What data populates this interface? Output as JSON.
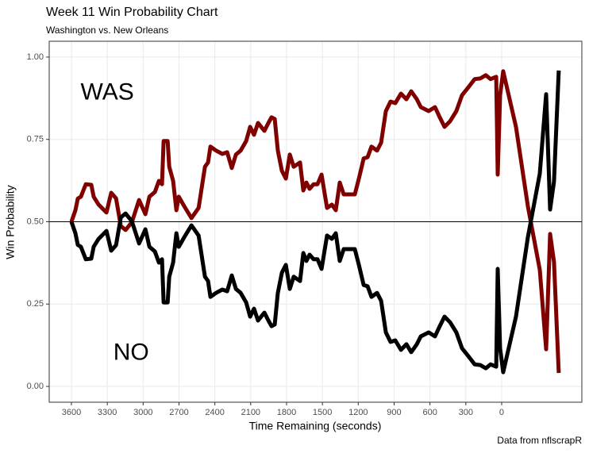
{
  "chart_data": {
    "type": "line",
    "title": "Week 11 Win Probability Chart",
    "subtitle": "Washington vs. New Orleans",
    "x_label": "Time Remaining (seconds)",
    "y_label": "Win Probability",
    "caption": "Data from nflscrapR",
    "annotations": [
      {
        "text": "WAS",
        "x": 3300,
        "y": 0.89,
        "color": "#800000"
      },
      {
        "text": "NO",
        "x": 3100,
        "y": 0.1,
        "color": "#000000"
      }
    ],
    "hline": 0.5,
    "grid": true,
    "xlim": [
      3786,
      -671
    ],
    "ylim": [
      -0.048,
      1.048
    ],
    "xticks": [
      3600,
      3300,
      3000,
      2700,
      2400,
      2100,
      1800,
      1500,
      1200,
      900,
      600,
      300,
      0
    ],
    "yticks": [
      {
        "value": 0,
        "label": "0.00"
      },
      {
        "value": 0.25,
        "label": "0.25"
      },
      {
        "value": 0.5,
        "label": "0.50"
      },
      {
        "value": 0.75,
        "label": "0.75"
      },
      {
        "value": 1,
        "label": "1.00"
      }
    ],
    "x": [
      3600,
      3567,
      3547,
      3521,
      3480,
      3434,
      3414,
      3373,
      3307,
      3267,
      3227,
      3187,
      3147,
      3094,
      3034,
      2981,
      2948,
      2902,
      2868,
      2842,
      2829,
      2795,
      2782,
      2749,
      2722,
      2702,
      2656,
      2596,
      2536,
      2483,
      2457,
      2437,
      2390,
      2337,
      2297,
      2258,
      2224,
      2184,
      2138,
      2105,
      2072,
      2039,
      1985,
      1952,
      1926,
      1899,
      1873,
      1839,
      1806,
      1773,
      1740,
      1687,
      1660,
      1634,
      1607,
      1574,
      1541,
      1507,
      1461,
      1421,
      1388,
      1355,
      1322,
      1275,
      1229,
      1195,
      1155,
      1122,
      1089,
      1043,
      1009,
      969,
      930,
      890,
      843,
      797,
      757,
      710,
      677,
      611,
      558,
      518,
      478,
      432,
      379,
      332,
      279,
      226,
      179,
      133,
      93,
      46,
      33,
      13,
      -13,
      -120,
      -219,
      -319,
      -372,
      -405,
      -438,
      -478
    ],
    "series": [
      {
        "name": "WAS",
        "color": "#800000",
        "values": [
          0.5,
          0.535,
          0.57,
          0.576,
          0.614,
          0.612,
          0.576,
          0.552,
          0.528,
          0.588,
          0.571,
          0.487,
          0.475,
          0.499,
          0.566,
          0.523,
          0.576,
          0.59,
          0.624,
          0.614,
          0.745,
          0.745,
          0.667,
          0.624,
          0.535,
          0.576,
          0.547,
          0.511,
          0.542,
          0.667,
          0.68,
          0.728,
          0.716,
          0.706,
          0.711,
          0.663,
          0.704,
          0.716,
          0.745,
          0.788,
          0.764,
          0.8,
          0.776,
          0.8,
          0.817,
          0.812,
          0.716,
          0.655,
          0.631,
          0.704,
          0.667,
          0.68,
          0.595,
          0.619,
          0.6,
          0.614,
          0.614,
          0.643,
          0.542,
          0.552,
          0.535,
          0.619,
          0.583,
          0.583,
          0.583,
          0.631,
          0.692,
          0.696,
          0.728,
          0.716,
          0.74,
          0.836,
          0.865,
          0.86,
          0.889,
          0.872,
          0.896,
          0.872,
          0.848,
          0.836,
          0.848,
          0.817,
          0.788,
          0.805,
          0.836,
          0.884,
          0.908,
          0.933,
          0.935,
          0.945,
          0.933,
          0.94,
          0.643,
          0.884,
          0.957,
          0.788,
          0.547,
          0.354,
          0.113,
          0.463,
          0.378,
          0.041
        ]
      },
      {
        "name": "NO",
        "color": "#000000",
        "values": [
          0.5,
          0.465,
          0.43,
          0.424,
          0.386,
          0.388,
          0.424,
          0.448,
          0.472,
          0.412,
          0.429,
          0.513,
          0.525,
          0.501,
          0.434,
          0.477,
          0.424,
          0.41,
          0.376,
          0.386,
          0.255,
          0.255,
          0.333,
          0.376,
          0.465,
          0.424,
          0.453,
          0.489,
          0.458,
          0.333,
          0.32,
          0.272,
          0.284,
          0.294,
          0.289,
          0.337,
          0.296,
          0.284,
          0.255,
          0.212,
          0.236,
          0.2,
          0.224,
          0.2,
          0.183,
          0.188,
          0.284,
          0.345,
          0.369,
          0.296,
          0.333,
          0.32,
          0.405,
          0.381,
          0.4,
          0.386,
          0.386,
          0.357,
          0.458,
          0.448,
          0.465,
          0.381,
          0.417,
          0.417,
          0.417,
          0.369,
          0.308,
          0.304,
          0.272,
          0.284,
          0.26,
          0.164,
          0.135,
          0.14,
          0.111,
          0.128,
          0.104,
          0.128,
          0.152,
          0.164,
          0.152,
          0.183,
          0.212,
          0.195,
          0.164,
          0.116,
          0.092,
          0.067,
          0.065,
          0.055,
          0.067,
          0.06,
          0.357,
          0.116,
          0.043,
          0.212,
          0.453,
          0.646,
          0.887,
          0.537,
          0.622,
          0.959
        ]
      }
    ]
  }
}
